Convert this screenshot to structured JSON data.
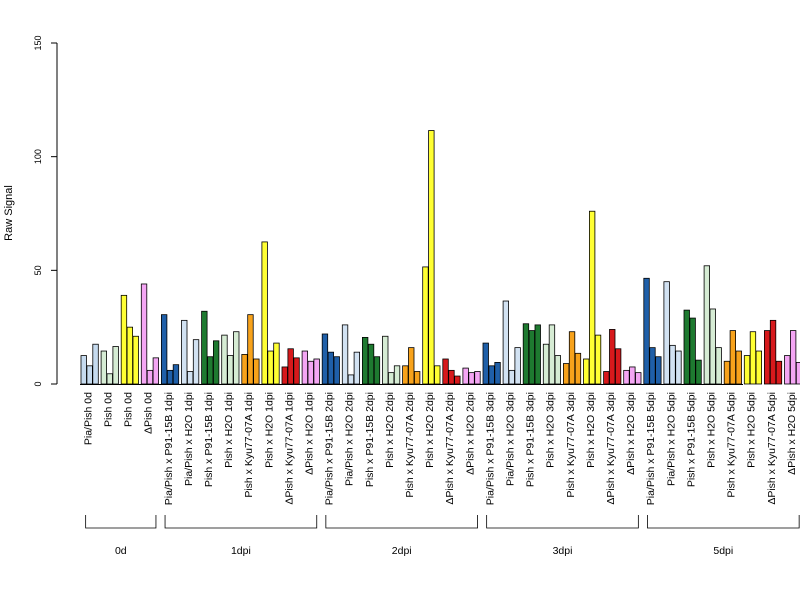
{
  "chart_data": {
    "type": "bar",
    "ylabel": "Raw Signal",
    "ylim": [
      0,
      150
    ],
    "yticks": [
      0,
      50,
      100,
      150
    ],
    "colors": {
      "Pia/Pish": "#c6dbef",
      "Pia/Pish x P91-15B": "#1f5fa8",
      "Pia/Pish x H2O": "#d2e2f2",
      "Pish x P91-15B": "#1e7a30",
      "Pish x H2O (green)": "#d6ecd4",
      "Pish x Kyu77-07A": "#f7a21b",
      "Pish x H2O (yellow)": "#ffff33",
      "ΔPish x Kyu77-07A": "#d7191c",
      "ΔPish x H2O": "#f4a6f4"
    },
    "categories": [
      {
        "label": "Pia/Pish 0d",
        "color": "#c6dbef",
        "values": [
          12.5,
          8,
          17.5
        ]
      },
      {
        "label": "Pish 0d",
        "color": "#d6ecd4",
        "values": [
          14.5,
          4.5,
          16.5
        ]
      },
      {
        "label": "Pish 0d",
        "color": "#ffff33",
        "values": [
          39,
          25,
          21
        ]
      },
      {
        "label": "ΔPish 0d",
        "color": "#f4a6f4",
        "values": [
          44,
          6,
          11.5
        ]
      },
      {
        "label": "Pia/Pish x P91-15B 1dpi",
        "color": "#1f5fa8",
        "values": [
          30.5,
          6,
          8.5
        ]
      },
      {
        "label": "Pia/Pish x H2O 1dpi",
        "color": "#d2e2f2",
        "values": [
          28,
          5.5,
          19.5
        ]
      },
      {
        "label": "Pish x P91-15B 1dpi",
        "color": "#1e7a30",
        "values": [
          32,
          12,
          19
        ]
      },
      {
        "label": "Pish x H2O 1dpi",
        "color": "#d6ecd4",
        "values": [
          21.5,
          12.5,
          23
        ]
      },
      {
        "label": "Pish x Kyu77-07A 1dpi",
        "color": "#f7a21b",
        "values": [
          13,
          30.5,
          11
        ]
      },
      {
        "label": "Pish x H2O 1dpi",
        "color": "#ffff33",
        "values": [
          62.5,
          14.5,
          18
        ]
      },
      {
        "label": "ΔPish x Kyu77-07A 1dpi",
        "color": "#d7191c",
        "values": [
          7.5,
          15.5,
          11.5
        ]
      },
      {
        "label": "ΔPish x H2O 1dpi",
        "color": "#f4a6f4",
        "values": [
          14.5,
          10,
          11
        ]
      },
      {
        "label": "Pia/Pish x P91-15B 2dpi",
        "color": "#1f5fa8",
        "values": [
          22,
          14,
          12
        ]
      },
      {
        "label": "Pia/Pish x H2O 2dpi",
        "color": "#d2e2f2",
        "values": [
          26,
          4,
          14
        ]
      },
      {
        "label": "Pish x P91-15B 2dpi",
        "color": "#1e7a30",
        "values": [
          20.5,
          17.5,
          12
        ]
      },
      {
        "label": "Pish x H2O 2dpi",
        "color": "#d6ecd4",
        "values": [
          21,
          5,
          8
        ]
      },
      {
        "label": "Pish x Kyu77-07A 2dpi",
        "color": "#f7a21b",
        "values": [
          8,
          16,
          5.5
        ]
      },
      {
        "label": "Pish x H2O 2dpi",
        "color": "#ffff33",
        "values": [
          51.5,
          111.5,
          8
        ]
      },
      {
        "label": "ΔPish x Kyu77-07A 2dpi",
        "color": "#d7191c",
        "values": [
          11,
          6,
          3.5
        ]
      },
      {
        "label": "ΔPish x H2O 2dpi",
        "color": "#f4a6f4",
        "values": [
          7,
          5,
          5.5
        ]
      },
      {
        "label": "Pia/Pish x P91-15B 3dpi",
        "color": "#1f5fa8",
        "values": [
          18,
          8,
          9.5
        ]
      },
      {
        "label": "Pia/Pish x H2O 3dpi",
        "color": "#d2e2f2",
        "values": [
          36.5,
          6,
          16
        ]
      },
      {
        "label": "Pish x P91-15B 3dpi",
        "color": "#1e7a30",
        "values": [
          26.5,
          23.5,
          26
        ]
      },
      {
        "label": "Pish x H2O 3dpi",
        "color": "#d6ecd4",
        "values": [
          17.5,
          26,
          12.5
        ]
      },
      {
        "label": "Pish x Kyu77-07A 3dpi",
        "color": "#f7a21b",
        "values": [
          9,
          23,
          13.5
        ]
      },
      {
        "label": "Pish x H2O 3dpi",
        "color": "#ffff33",
        "values": [
          11,
          76,
          21.5
        ]
      },
      {
        "label": "ΔPish x Kyu77-07A 3dpi",
        "color": "#d7191c",
        "values": [
          5.5,
          24,
          15.5
        ]
      },
      {
        "label": "ΔPish x H2O 3dpi",
        "color": "#f4a6f4",
        "values": [
          6,
          7.5,
          5
        ]
      },
      {
        "label": "Pia/Pish x P91-15B 5dpi",
        "color": "#1f5fa8",
        "values": [
          46.5,
          16,
          12
        ]
      },
      {
        "label": "Pia/Pish x H2O 5dpi",
        "color": "#d2e2f2",
        "values": [
          45,
          17,
          14.5
        ]
      },
      {
        "label": "Pish x P91-15B 5dpi",
        "color": "#1e7a30",
        "values": [
          32.5,
          29,
          10.5
        ]
      },
      {
        "label": "Pish x H2O 5dpi",
        "color": "#d6ecd4",
        "values": [
          52,
          33,
          16
        ]
      },
      {
        "label": "Pish x Kyu77-07A 5dpi",
        "color": "#f7a21b",
        "values": [
          10,
          23.5,
          14.5
        ]
      },
      {
        "label": "Pish x H2O 5dpi",
        "color": "#ffff33",
        "values": [
          12.5,
          23,
          14.5
        ]
      },
      {
        "label": "ΔPish x Kyu77-07A 5dpi",
        "color": "#d7191c",
        "values": [
          23.5,
          28,
          10
        ]
      },
      {
        "label": "ΔPish x H2O 5dpi",
        "color": "#f4a6f4",
        "values": [
          12.5,
          23.5,
          9.5
        ]
      }
    ],
    "groups": [
      {
        "label": "0d",
        "count": 4
      },
      {
        "label": "1dpi",
        "count": 8
      },
      {
        "label": "2dpi",
        "count": 8
      },
      {
        "label": "3dpi",
        "count": 8
      },
      {
        "label": "5dpi",
        "count": 8
      }
    ]
  }
}
